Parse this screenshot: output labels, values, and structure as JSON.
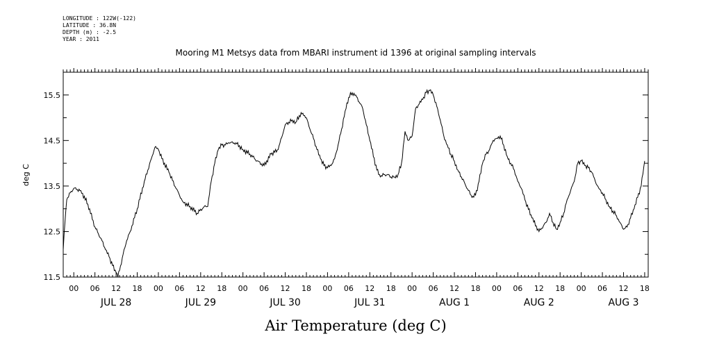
{
  "header": {
    "longitude": "LONGITUDE : 122W(-122)",
    "latitude": "LATITUDE : 36.8N",
    "depth": "DEPTH (m) : -2.5",
    "year": "YEAR : 2011"
  },
  "chart_data": {
    "type": "line",
    "title": "Mooring M1 Metsys data from MBARI instrument id 1396 at original sampling intervals",
    "xlabel": "Air Temperature (deg C)",
    "ylabel": "deg C",
    "ylim": [
      11.5,
      16.0
    ],
    "yticks": [
      "11.5",
      "12.5",
      "13.5",
      "14.5",
      "15.5"
    ],
    "xlim_hours": [
      -3,
      163
    ],
    "hour_tick_labels": [
      "00",
      "06",
      "12",
      "18"
    ],
    "day_labels": [
      "JUL 28",
      "JUL 29",
      "JUL 30",
      "JUL 31",
      "AUG  1",
      "AUG  2",
      "AUG  3"
    ],
    "grid": false,
    "series": [
      {
        "x_hours": [
          -3,
          -2.5,
          -2,
          -1,
          0,
          2,
          4,
          6,
          8,
          9,
          10,
          11,
          12,
          12.5,
          13,
          14,
          15,
          16,
          18,
          20,
          22,
          23,
          24,
          25,
          27,
          29,
          31,
          33,
          35,
          37,
          38,
          39,
          40,
          41,
          42,
          43,
          44,
          46,
          48,
          50,
          52,
          54,
          56,
          58,
          60,
          62,
          63,
          64,
          65,
          66,
          67,
          68,
          69,
          70,
          71,
          72,
          73,
          74,
          75,
          76,
          77,
          78,
          79,
          80,
          82,
          84,
          86,
          87,
          88,
          89,
          90,
          91,
          92,
          93,
          94,
          95,
          96,
          97,
          98,
          99,
          100,
          101,
          102,
          103,
          104,
          105,
          106,
          107,
          108,
          109,
          110,
          111,
          112,
          113,
          114,
          115,
          116,
          117,
          118,
          119,
          120,
          121,
          122,
          123,
          124,
          125,
          126,
          127,
          128,
          130,
          132,
          134,
          135,
          136,
          137,
          138,
          139,
          140,
          141,
          142,
          143,
          144,
          145,
          146,
          147,
          148,
          149,
          150,
          151,
          152,
          153,
          154,
          155,
          156,
          157,
          158,
          159,
          160,
          161,
          162
        ],
        "values": [
          12.1,
          12.7,
          13.2,
          13.35,
          13.45,
          13.4,
          13.1,
          12.6,
          12.3,
          12.1,
          11.95,
          11.75,
          11.6,
          11.5,
          11.65,
          12.0,
          12.3,
          12.5,
          13.0,
          13.6,
          14.1,
          14.35,
          14.3,
          14.1,
          13.8,
          13.45,
          13.15,
          13.05,
          12.9,
          13.05,
          13.05,
          13.6,
          14.0,
          14.3,
          14.4,
          14.4,
          14.45,
          14.45,
          14.3,
          14.2,
          14.05,
          13.95,
          14.2,
          14.3,
          14.85,
          14.95,
          14.9,
          15.05,
          15.1,
          15.0,
          14.75,
          14.55,
          14.3,
          14.1,
          13.95,
          13.9,
          13.95,
          14.1,
          14.4,
          14.75,
          15.15,
          15.45,
          15.55,
          15.5,
          15.2,
          14.5,
          13.85,
          13.7,
          13.75,
          13.75,
          13.7,
          13.7,
          13.75,
          14.0,
          14.7,
          14.5,
          14.6,
          15.2,
          15.3,
          15.4,
          15.55,
          15.6,
          15.5,
          15.25,
          14.95,
          14.6,
          14.4,
          14.2,
          14.05,
          13.85,
          13.7,
          13.55,
          13.4,
          13.25,
          13.3,
          13.6,
          14.0,
          14.2,
          14.3,
          14.5,
          14.55,
          14.6,
          14.4,
          14.15,
          14.0,
          13.85,
          13.6,
          13.45,
          13.2,
          12.8,
          12.5,
          12.7,
          12.9,
          12.7,
          12.55,
          12.7,
          12.9,
          13.2,
          13.4,
          13.6,
          14.0,
          14.05,
          13.95,
          13.9,
          13.8,
          13.6,
          13.45,
          13.35,
          13.2,
          13.05,
          12.95,
          12.85,
          12.7,
          12.55,
          12.6,
          12.8,
          13.0,
          13.25,
          13.5,
          14.05
        ]
      }
    ]
  }
}
